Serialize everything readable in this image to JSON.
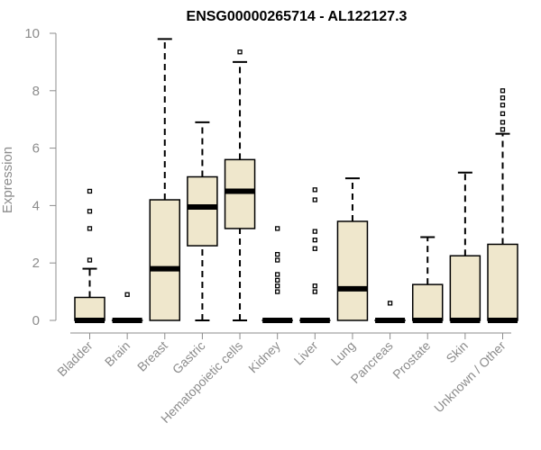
{
  "chart_data": {
    "type": "box",
    "title": "ENSG00000265714 - AL122127.3",
    "ylabel": "Expression",
    "xlabel": "",
    "ylim": [
      0,
      10
    ],
    "yticks": [
      0,
      2,
      4,
      6,
      8,
      10
    ],
    "grid": false,
    "box_fill": "#efe7cc",
    "categories": [
      "Bladder",
      "Brain",
      "Breast",
      "Gastric",
      "Hematopoietic cells",
      "Kidney",
      "Liver",
      "Lung",
      "Pancreas",
      "Prostate",
      "Skin",
      "Unknown / Other"
    ],
    "series": [
      {
        "min": 0,
        "q1": 0,
        "median": 0,
        "q3": 0.8,
        "max": 1.8,
        "outliers": [
          2.1,
          3.2,
          3.8,
          4.5
        ]
      },
      {
        "min": 0,
        "q1": 0,
        "median": 0,
        "q3": 0,
        "max": 0,
        "outliers": [
          0.9
        ]
      },
      {
        "min": 0,
        "q1": 0,
        "median": 1.8,
        "q3": 4.2,
        "max": 9.8,
        "outliers": []
      },
      {
        "min": 0,
        "q1": 2.6,
        "median": 3.95,
        "q3": 5.0,
        "max": 6.9,
        "outliers": []
      },
      {
        "min": 0,
        "q1": 3.2,
        "median": 4.5,
        "q3": 5.6,
        "max": 9.0,
        "outliers": [
          9.35
        ]
      },
      {
        "min": 0,
        "q1": 0,
        "median": 0,
        "q3": 0,
        "max": 0,
        "outliers": [
          1.0,
          1.2,
          1.4,
          1.6,
          2.1,
          2.3,
          3.2
        ]
      },
      {
        "min": 0,
        "q1": 0,
        "median": 0,
        "q3": 0,
        "max": 0,
        "outliers": [
          1.0,
          1.2,
          2.5,
          2.8,
          3.1,
          4.2,
          4.55
        ]
      },
      {
        "min": 0,
        "q1": 0,
        "median": 1.1,
        "q3": 3.45,
        "max": 4.95,
        "outliers": []
      },
      {
        "min": 0,
        "q1": 0,
        "median": 0,
        "q3": 0,
        "max": 0,
        "outliers": [
          0.6
        ]
      },
      {
        "min": 0,
        "q1": 0,
        "median": 0,
        "q3": 1.25,
        "max": 2.9,
        "outliers": []
      },
      {
        "min": 0,
        "q1": 0,
        "median": 0,
        "q3": 2.25,
        "max": 5.15,
        "outliers": []
      },
      {
        "min": 0,
        "q1": 0,
        "median": 0,
        "q3": 2.65,
        "max": 6.5,
        "outliers": [
          6.65,
          6.9,
          7.2,
          7.5,
          7.75,
          8.0
        ]
      }
    ]
  }
}
